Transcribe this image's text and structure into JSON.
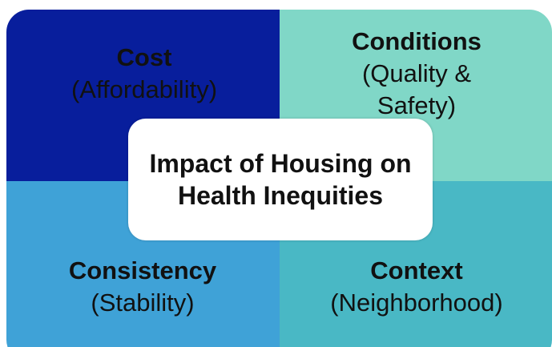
{
  "quadrants": [
    {
      "title": "Cost",
      "subtitle": "(Affordability)"
    },
    {
      "title": "Conditions",
      "subtitle": "(Quality & Safety)"
    },
    {
      "title": "Consistency",
      "subtitle": "(Stability)"
    },
    {
      "title": "Context",
      "subtitle": "(Neighborhood)"
    }
  ],
  "center": "Impact of Housing on Health Inequities"
}
